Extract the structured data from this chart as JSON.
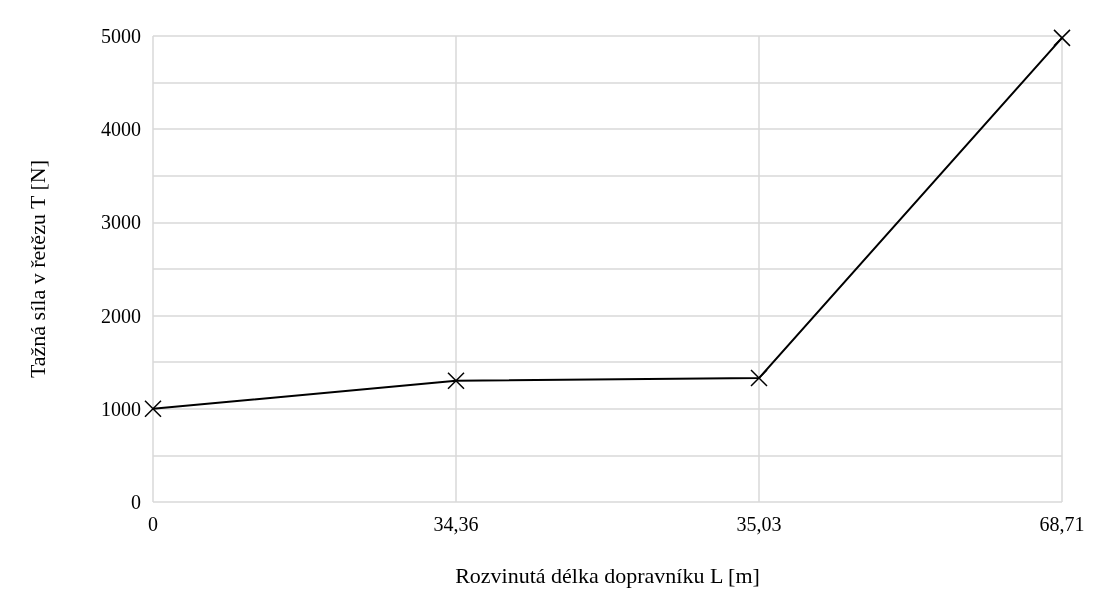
{
  "chart_data": {
    "type": "line",
    "xlabel": "Rozvinutá délka dopravníku L [m]",
    "ylabel": "Tažná síla v řetězu T [N]",
    "categories": [
      "0",
      "34,36",
      "35,03",
      "68,71"
    ],
    "series": [
      {
        "color": "#000000",
        "values": [
          1000,
          1300,
          1330,
          4980
        ]
      }
    ],
    "ylim": [
      0,
      5000
    ],
    "yticks": [
      0,
      {
        "value": 500,
        "label": null
      },
      1000,
      {
        "value": 1500,
        "label": null
      },
      2000,
      {
        "value": 2500,
        "label": null
      },
      3000,
      {
        "value": 3500,
        "label": null
      },
      4000,
      {
        "value": 4500,
        "label": null
      },
      5000
    ],
    "grid": true,
    "marker": "cross",
    "line_style": "solid"
  }
}
